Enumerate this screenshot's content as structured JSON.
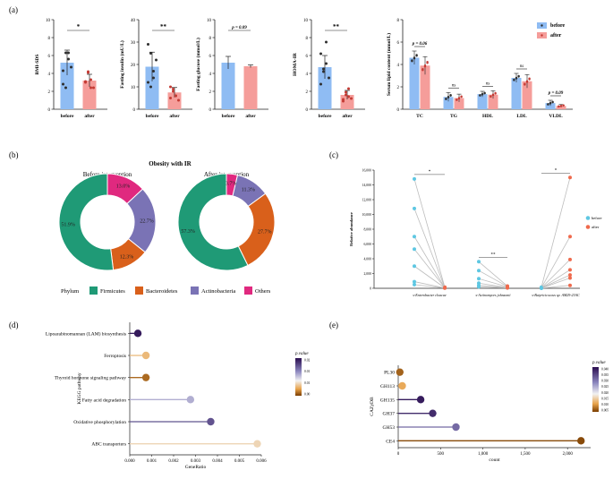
{
  "panel_labels": {
    "a": "(a)",
    "b": "(b)",
    "c": "(c)",
    "d": "(d)",
    "e": "(e)"
  },
  "colors": {
    "before": "#8fbcf3",
    "after": "#f59d9a",
    "dot_before": "#2f2f2f",
    "dot_after": "#c43b34",
    "firmicutes": "#1f9a76",
    "bacteroidetes": "#d9601b",
    "actinobacteria": "#7a73b5",
    "others": "#e0297f",
    "line_c_before": "#5ec7e2",
    "line_c_after": "#ef6a4d"
  },
  "chart_data": [
    {
      "id": "a1",
      "type": "bar",
      "title": "",
      "ylabel": "BMI-SDS",
      "categories": [
        "before",
        "after"
      ],
      "values": [
        5.2,
        3.2
      ],
      "errors": [
        1.4,
        0.7
      ],
      "ylim": [
        0,
        10
      ],
      "yticks": [
        "0",
        "2",
        "4",
        "6",
        "8",
        "10"
      ],
      "sig": "*",
      "points": [
        [
          4.3,
          6.3,
          5.6,
          4.7,
          2.8,
          2.4,
          6.3
        ],
        [
          3.0,
          4.2,
          2.4,
          2.4,
          3.1,
          4.1,
          3.3
        ]
      ]
    },
    {
      "id": "a2",
      "type": "bar",
      "title": "",
      "ylabel": "Fasting insulin (mU/L)",
      "categories": [
        "before",
        "after"
      ],
      "values": [
        19,
        7.5
      ],
      "errors": [
        6.5,
        2.2
      ],
      "ylim": [
        0,
        40
      ],
      "yticks": [
        "0",
        "10",
        "20",
        "30",
        "40"
      ],
      "sig": "**",
      "points": [
        [
          29,
          25,
          14,
          22,
          12,
          10,
          17
        ],
        [
          5,
          9,
          6,
          4,
          10,
          8,
          6
        ]
      ]
    },
    {
      "id": "a3",
      "type": "bar",
      "title": "",
      "ylabel": "Fasting glucose (mmol/L)",
      "categories": [
        "before",
        "after"
      ],
      "values": [
        5.2,
        4.8
      ],
      "errors": [
        0.7,
        0.15
      ],
      "ylim": [
        0,
        10
      ],
      "yticks": [
        "0",
        "2",
        "4",
        "6",
        "8",
        "10"
      ],
      "sig": "p = 0.09",
      "points": [
        [],
        []
      ]
    },
    {
      "id": "a4",
      "type": "bar",
      "title": "",
      "ylabel": "HOMA-IR",
      "categories": [
        "before",
        "after"
      ],
      "values": [
        4.7,
        1.6
      ],
      "errors": [
        1.3,
        0.5
      ],
      "ylim": [
        0,
        10
      ],
      "yticks": [
        "0",
        "2",
        "4",
        "6",
        "8",
        "10"
      ],
      "sig": "**",
      "points": [
        [
          6.2,
          4.5,
          5.1,
          3.5,
          2.8,
          4.2,
          7.5
        ],
        [
          1.1,
          1.9,
          2.3,
          1.2,
          0.9,
          1.6,
          1.4
        ]
      ]
    },
    {
      "id": "a5",
      "type": "bar",
      "title": "",
      "ylabel": "Serum lipid content (mmol/L)",
      "categories": [
        "TC",
        "TG",
        "HDL",
        "LDL",
        "VLDL"
      ],
      "series": [
        {
          "name": "before",
          "values": [
            4.6,
            1.1,
            1.35,
            2.8,
            0.55
          ],
          "errors": [
            0.6,
            0.4,
            0.25,
            0.4,
            0.25
          ]
        },
        {
          "name": "after",
          "values": [
            3.9,
            1.0,
            1.3,
            2.5,
            0.3
          ],
          "errors": [
            0.8,
            0.35,
            0.35,
            0.6,
            0.12
          ]
        }
      ],
      "ylim": [
        0,
        8
      ],
      "yticks": [
        "0",
        "2",
        "4",
        "6",
        "8"
      ],
      "sig": [
        "p = 0.06",
        "ns",
        "ns",
        "ns",
        "p = 0.09"
      ],
      "legend": [
        "before",
        "after"
      ]
    },
    {
      "id": "b",
      "type": "pie",
      "title": "Obesity with IR",
      "legend_title": "Phylum",
      "categories": [
        "Firmicutes",
        "Bacteroidetes",
        "Actinobacteria",
        "Others"
      ],
      "donuts": [
        {
          "label": "Before intervention",
          "values": [
            51.9,
            12.3,
            22.7,
            13.0
          ],
          "labels": [
            "51.9%",
            "12.3%",
            "22.7%",
            "13.0%"
          ]
        },
        {
          "label": "After intervention",
          "values": [
            57.3,
            27.7,
            11.3,
            3.7
          ],
          "labels": [
            "57.3%",
            "27.7%",
            "11.3%",
            "3.7%"
          ]
        }
      ]
    },
    {
      "id": "c",
      "type": "line",
      "ylabel": "Relative abundance",
      "ylim": [
        0,
        16000
      ],
      "yticks": [
        "0",
        "2,000",
        "4,000",
        "6,000",
        "8,000",
        "10,000",
        "12,000",
        "14,000",
        "16,000"
      ],
      "groups": [
        "s-Enterobacter cloacae",
        "s-Actinomyces johnsonii",
        "s-Butyricicoccus sp. AM29-23AC"
      ],
      "sig": [
        "*",
        "**",
        "*"
      ],
      "legend": [
        "before",
        "after"
      ],
      "pairs": [
        [
          [
            14800,
            150
          ],
          [
            10800,
            120
          ],
          [
            7000,
            100
          ],
          [
            5300,
            80
          ],
          [
            3000,
            60
          ],
          [
            900,
            40
          ],
          [
            500,
            30
          ]
        ],
        [
          [
            3600,
            300
          ],
          [
            2400,
            250
          ],
          [
            1300,
            200
          ],
          [
            700,
            100
          ],
          [
            400,
            80
          ],
          [
            200,
            50
          ]
        ],
        [
          [
            150,
            15000
          ],
          [
            80,
            7000
          ],
          [
            60,
            3900
          ],
          [
            40,
            2500
          ],
          [
            30,
            1800
          ],
          [
            20,
            1400
          ],
          [
            10,
            400
          ]
        ]
      ]
    },
    {
      "id": "d",
      "type": "scatter",
      "ylabel": "KEGG pathway",
      "xlabel": "GeneRatio",
      "legend_title": "p.value",
      "categories": [
        "Lipoarabinomannan (LAM) biosynthesis",
        "Ferroptosis",
        "Thyroid hormone signaling pathway",
        "Fatty acid degradation",
        "Oxidative phosphorylation",
        "ABC transporters"
      ],
      "values": [
        0.0004,
        0.0008,
        0.0008,
        0.003,
        0.004,
        0.0063
      ],
      "pvalues": [
        0.024,
        0.006,
        0.002,
        0.014,
        0.02,
        0.008
      ],
      "xlim": [
        0,
        0.0065
      ],
      "xticks": [
        "0.000",
        "0.001",
        "0.002",
        "0.003",
        "0.004",
        "0.005",
        "0.006"
      ],
      "legend_ticks": [
        "0.02",
        "0.01",
        "0.01",
        "0.00"
      ]
    },
    {
      "id": "e",
      "type": "scatter",
      "ylabel": "CAZyDB",
      "xlabel": "count",
      "legend_title": "p.value",
      "categories": [
        "PL30",
        "GH113",
        "GH135",
        "GH37",
        "GH53",
        "CE4"
      ],
      "values": [
        20,
        50,
        280,
        430,
        720,
        2280
      ],
      "pvalues": [
        0.003,
        0.009,
        0.043,
        0.041,
        0.033,
        0.001
      ],
      "xlim": [
        0,
        2400
      ],
      "xticks": [
        "0",
        "500",
        "1,000",
        "1,500",
        "2,000"
      ],
      "legend_ticks": [
        "0.040",
        "0.035",
        "0.030",
        "0.025",
        "0.020",
        "0.015",
        "0.010",
        "0.005"
      ]
    }
  ]
}
